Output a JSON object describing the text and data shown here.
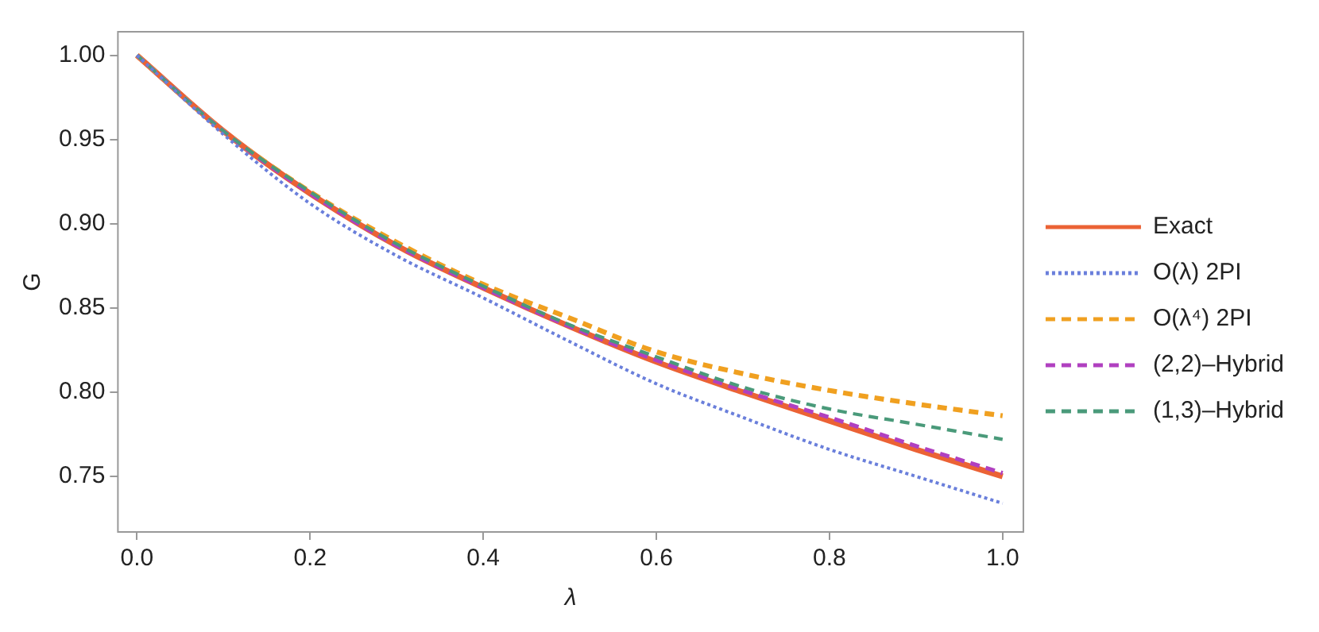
{
  "chart_data": {
    "type": "line",
    "xlabel": "λ",
    "ylabel": "G",
    "x": [
      0,
      0.1,
      0.2,
      0.3,
      0.4,
      0.5,
      0.6,
      0.7,
      0.8,
      0.9,
      1.0
    ],
    "series": [
      {
        "name": "Exact",
        "color": "#eb6235",
        "line_style": "solid",
        "values": [
          1.0,
          0.955,
          0.918,
          0.887,
          0.862,
          0.839,
          0.818,
          0.8,
          0.783,
          0.766,
          0.75
        ]
      },
      {
        "name": "O(λ) 2PI",
        "color": "#6a7fdb",
        "line_style": "dotted",
        "values": [
          1.0,
          0.953,
          0.912,
          0.881,
          0.856,
          0.83,
          0.805,
          0.785,
          0.766,
          0.75,
          0.734
        ]
      },
      {
        "name": "O(λ⁴) 2PI",
        "color": "#f0a020",
        "line_style": "dashed",
        "values": [
          1.0,
          0.955,
          0.919,
          0.889,
          0.864,
          0.844,
          0.824,
          0.811,
          0.801,
          0.793,
          0.786
        ]
      },
      {
        "name": "(2,2)–Hybrid",
        "color": "#b040c0",
        "line_style": "dashed",
        "values": [
          1.0,
          0.955,
          0.918,
          0.887,
          0.862,
          0.839,
          0.819,
          0.801,
          0.785,
          0.768,
          0.752
        ]
      },
      {
        "name": "(1,3)–Hybrid",
        "color": "#4a9a7a",
        "line_style": "dashed",
        "values": [
          1.0,
          0.955,
          0.919,
          0.888,
          0.863,
          0.84,
          0.821,
          0.803,
          0.79,
          0.781,
          0.772
        ]
      }
    ],
    "xlim": [
      -0.022,
      1.024
    ],
    "ylim": [
      0.717,
      1.014
    ],
    "xticks": [
      {
        "value": 0,
        "label": "0.0"
      },
      {
        "value": 0.2,
        "label": "0.2"
      },
      {
        "value": 0.4,
        "label": "0.4"
      },
      {
        "value": 0.6,
        "label": "0.6"
      },
      {
        "value": 0.8,
        "label": "0.8"
      },
      {
        "value": 1.0,
        "label": "1.0"
      }
    ],
    "yticks": [
      {
        "value": 0.75,
        "label": "0.75"
      },
      {
        "value": 0.8,
        "label": "0.80"
      },
      {
        "value": 0.85,
        "label": "0.85"
      },
      {
        "value": 0.9,
        "label": "0.90"
      },
      {
        "value": 0.95,
        "label": "0.95"
      },
      {
        "value": 1.0,
        "label": "1.00"
      }
    ],
    "grid": false,
    "legend": "right",
    "marker": "none"
  }
}
